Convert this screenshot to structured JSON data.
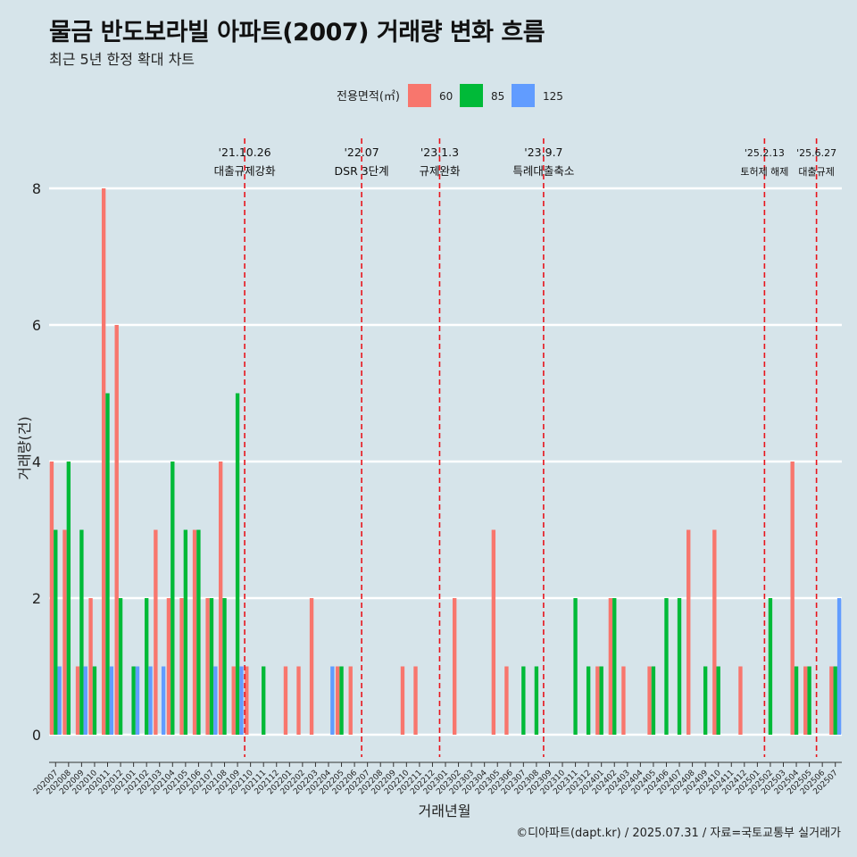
{
  "header": {
    "title": "물금 반도보라빌 아파트(2007) 거래량 변화 흐름",
    "subtitle": "최근 5년 한정 확대 차트",
    "caption": "©디아파트(dapt.kr) / 2025.07.31 / 자료=국토교통부 실거래가"
  },
  "colors": {
    "background": "#d6e4ea",
    "s60": "#f8766d",
    "s85": "#00ba38",
    "s125": "#619cff",
    "event_line": "#e8141b"
  },
  "chart_data": {
    "type": "bar",
    "xlabel": "거래년월",
    "ylabel": "거래량(건)",
    "ylim": [
      0,
      8
    ],
    "yticks": [
      0,
      2,
      4,
      6,
      8
    ],
    "grid": true,
    "legend_title": "전용면적(㎡)",
    "legend_position": "top",
    "categories": [
      "202007",
      "202008",
      "202009",
      "202010",
      "202011",
      "202012",
      "202101",
      "202102",
      "202103",
      "202104",
      "202105",
      "202106",
      "202107",
      "202108",
      "202109",
      "202110",
      "202111",
      "202112",
      "202201",
      "202202",
      "202203",
      "202204",
      "202205",
      "202206",
      "202207",
      "202208",
      "202209",
      "202210",
      "202211",
      "202212",
      "202301",
      "202302",
      "202303",
      "202304",
      "202305",
      "202306",
      "202307",
      "202308",
      "202309",
      "202310",
      "202311",
      "202312",
      "202401",
      "202402",
      "202403",
      "202404",
      "202405",
      "202406",
      "202407",
      "202408",
      "202409",
      "202410",
      "202411",
      "202412",
      "202501",
      "202502",
      "202503",
      "202504",
      "202505",
      "202506",
      "202507"
    ],
    "series": [
      {
        "name": "60",
        "values": [
          4,
          3,
          1,
          2,
          8,
          6,
          0,
          0,
          3,
          2,
          2,
          3,
          2,
          4,
          1,
          1,
          0,
          0,
          1,
          1,
          2,
          0,
          1,
          1,
          0,
          0,
          0,
          1,
          1,
          0,
          0,
          2,
          0,
          0,
          3,
          1,
          0,
          0,
          0,
          0,
          0,
          0,
          1,
          2,
          1,
          0,
          1,
          0,
          0,
          3,
          0,
          3,
          0,
          1,
          0,
          0,
          0,
          4,
          1,
          0,
          1
        ]
      },
      {
        "name": "85",
        "values": [
          3,
          4,
          3,
          1,
          5,
          2,
          1,
          2,
          0,
          4,
          3,
          3,
          2,
          2,
          5,
          0,
          1,
          0,
          0,
          0,
          0,
          0,
          1,
          0,
          0,
          0,
          0,
          0,
          0,
          0,
          0,
          0,
          0,
          0,
          0,
          0,
          1,
          1,
          0,
          0,
          2,
          1,
          1,
          2,
          0,
          0,
          1,
          2,
          2,
          0,
          1,
          1,
          0,
          0,
          0,
          2,
          0,
          1,
          1,
          0,
          1
        ]
      },
      {
        "name": "125",
        "values": [
          1,
          0,
          1,
          0,
          1,
          0,
          1,
          1,
          1,
          0,
          0,
          0,
          1,
          0,
          1,
          0,
          0,
          0,
          0,
          0,
          0,
          1,
          0,
          0,
          0,
          0,
          0,
          0,
          0,
          0,
          0,
          0,
          0,
          0,
          0,
          0,
          0,
          0,
          0,
          0,
          0,
          0,
          0,
          0,
          0,
          0,
          0,
          0,
          0,
          0,
          0,
          0,
          0,
          0,
          0,
          0,
          0,
          0,
          0,
          0,
          2
        ]
      }
    ],
    "events": [
      {
        "month": "202110",
        "date_label": "'21.10.26",
        "text": "대출규제강화"
      },
      {
        "month": "202207",
        "date_label": "'22.07",
        "text": "DSR 3단계"
      },
      {
        "month": "202301",
        "date_label": "'23.1.3",
        "text": "규제완화"
      },
      {
        "month": "202309",
        "date_label": "'23.9.7",
        "text": "특례대출축소"
      },
      {
        "month": "202502",
        "date_label": "'25.2.13",
        "text": "토허제 해제"
      },
      {
        "month": "202506",
        "date_label": "'25.6.27",
        "text": "대출규제"
      }
    ]
  }
}
